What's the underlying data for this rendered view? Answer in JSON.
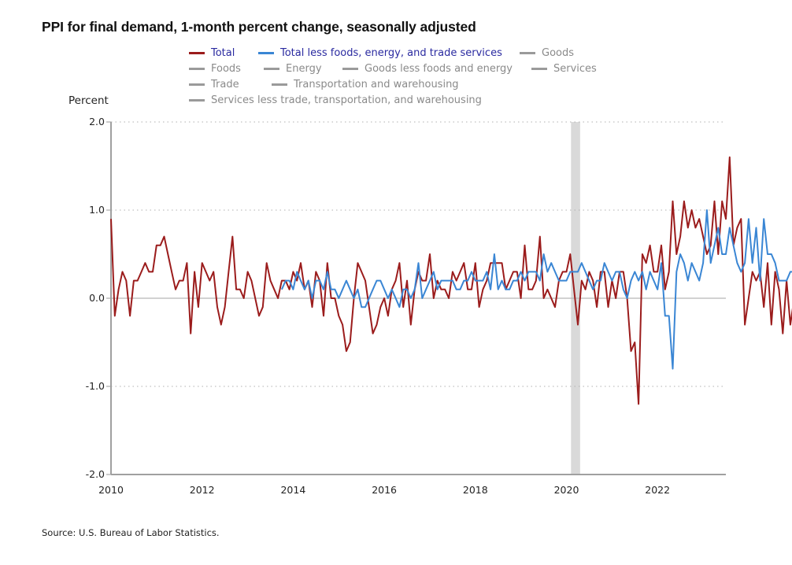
{
  "chart_data": {
    "type": "line",
    "title": "PPI for final demand, 1-month percent change, seasonally adjusted",
    "ylabel": "Percent",
    "xlabel": "",
    "source": "Source: U.S. Bureau of Labor Statistics.",
    "ylim": [
      -2.0,
      2.0
    ],
    "yticks": [
      "2.0",
      "1.0",
      "0.0",
      "-1.0",
      "-2.0"
    ],
    "ytick_values": [
      2.0,
      1.0,
      0.0,
      -1.0,
      -2.0
    ],
    "xticks": [
      "2010",
      "2012",
      "2014",
      "2016",
      "2018",
      "2020",
      "2022"
    ],
    "xtick_values": [
      2010,
      2012,
      2014,
      2016,
      2018,
      2020,
      2022
    ],
    "xlim": [
      2010,
      2023.5
    ],
    "grid": "horizontal dotted",
    "recession_shading": {
      "start": 2020.1,
      "end": 2020.3
    },
    "legend_position": "top",
    "legend": [
      {
        "label": "Total",
        "color": "#9b1c1c",
        "active": true
      },
      {
        "label": "Total less foods, energy, and trade services",
        "color": "#3a86d4",
        "active": true
      },
      {
        "label": "Goods",
        "color": "#9a9a9a",
        "active": false
      },
      {
        "label": "Foods",
        "color": "#9a9a9a",
        "active": false
      },
      {
        "label": "Energy",
        "color": "#9a9a9a",
        "active": false
      },
      {
        "label": "Goods less foods and energy",
        "color": "#9a9a9a",
        "active": false
      },
      {
        "label": "Services",
        "color": "#9a9a9a",
        "active": false
      },
      {
        "label": "Trade",
        "color": "#9a9a9a",
        "active": false
      },
      {
        "label": "Transportation and warehousing",
        "color": "#9a9a9a",
        "active": false
      },
      {
        "label": "Services less trade, transportation, and warehousing",
        "color": "#9a9a9a",
        "active": false
      }
    ],
    "series": [
      {
        "name": "Total",
        "color": "#9b1c1c",
        "start": 2010.0,
        "step_months": 1,
        "values": [
          0.9,
          -0.2,
          0.1,
          0.3,
          0.2,
          -0.2,
          0.2,
          0.2,
          0.3,
          0.4,
          0.3,
          0.3,
          0.6,
          0.6,
          0.7,
          0.5,
          0.3,
          0.1,
          0.2,
          0.2,
          0.4,
          -0.4,
          0.3,
          -0.1,
          0.4,
          0.3,
          0.2,
          0.3,
          -0.1,
          -0.3,
          -0.1,
          0.3,
          0.7,
          0.1,
          0.1,
          0.0,
          0.3,
          0.2,
          0.0,
          -0.2,
          -0.1,
          0.4,
          0.2,
          0.1,
          0.0,
          0.2,
          0.2,
          0.1,
          0.3,
          0.2,
          0.4,
          0.1,
          0.2,
          -0.1,
          0.3,
          0.2,
          -0.2,
          0.4,
          0.0,
          0.0,
          -0.2,
          -0.3,
          -0.6,
          -0.5,
          0.0,
          0.4,
          0.3,
          0.2,
          -0.1,
          -0.4,
          -0.3,
          -0.1,
          0.0,
          -0.2,
          0.1,
          0.2,
          0.4,
          -0.1,
          0.2,
          -0.3,
          0.1,
          0.3,
          0.2,
          0.2,
          0.5,
          0.0,
          0.2,
          0.1,
          0.1,
          0.0,
          0.3,
          0.2,
          0.3,
          0.4,
          0.1,
          0.1,
          0.4,
          -0.1,
          0.1,
          0.2,
          0.4,
          0.4,
          0.4,
          0.4,
          0.1,
          0.2,
          0.3,
          0.3,
          0.0,
          0.6,
          0.1,
          0.1,
          0.2,
          0.7,
          0.0,
          0.1,
          0.0,
          -0.1,
          0.2,
          0.3,
          0.3,
          0.5,
          0.1,
          -0.3,
          0.2,
          0.1,
          0.3,
          0.2,
          -0.1,
          0.3,
          0.3,
          -0.1,
          0.2,
          0.0,
          0.3,
          0.3,
          0.0,
          -0.6,
          -0.5,
          -1.2,
          0.5,
          0.4,
          0.6,
          0.3,
          0.3,
          0.6,
          0.1,
          0.3,
          1.1,
          0.5,
          0.7,
          1.1,
          0.8,
          1.0,
          0.8,
          0.9,
          0.7,
          0.5,
          0.6,
          1.1,
          0.5,
          1.1,
          0.9,
          1.6,
          0.6,
          0.8,
          0.9,
          -0.3,
          0.0,
          0.3,
          0.2,
          0.3,
          -0.1,
          0.4,
          -0.3,
          0.3,
          0.1,
          -0.4,
          0.2,
          -0.3,
          0.0,
          0.3
        ]
      },
      {
        "name": "Total less foods, energy, and trade services",
        "color": "#3a86d4",
        "start": 2013.75,
        "step_months": 1,
        "values": [
          0.1,
          0.2,
          0.2,
          0.1,
          0.3,
          0.2,
          0.1,
          0.2,
          0.0,
          0.2,
          0.2,
          0.1,
          0.3,
          0.1,
          0.1,
          0.0,
          0.1,
          0.2,
          0.1,
          0.0,
          0.1,
          -0.1,
          -0.1,
          0.0,
          0.1,
          0.2,
          0.2,
          0.1,
          0.0,
          0.1,
          0.0,
          -0.1,
          0.1,
          0.1,
          0.0,
          0.1,
          0.4,
          0.0,
          0.1,
          0.2,
          0.3,
          0.1,
          0.2,
          0.2,
          0.2,
          0.2,
          0.1,
          0.1,
          0.2,
          0.2,
          0.3,
          0.2,
          0.2,
          0.2,
          0.3,
          0.1,
          0.5,
          0.1,
          0.2,
          0.1,
          0.1,
          0.2,
          0.2,
          0.3,
          0.2,
          0.3,
          0.3,
          0.3,
          0.2,
          0.5,
          0.3,
          0.4,
          0.3,
          0.2,
          0.2,
          0.2,
          0.3,
          0.3,
          0.3,
          0.4,
          0.3,
          0.2,
          0.1,
          0.2,
          0.2,
          0.4,
          0.3,
          0.2,
          0.3,
          0.3,
          0.1,
          0.0,
          0.2,
          0.3,
          0.2,
          0.3,
          0.1,
          0.3,
          0.2,
          0.1,
          0.4,
          -0.2,
          -0.2,
          -0.8,
          0.3,
          0.5,
          0.4,
          0.2,
          0.4,
          0.3,
          0.2,
          0.4,
          1.0,
          0.4,
          0.6,
          0.8,
          0.5,
          0.5,
          0.8,
          0.6,
          0.4,
          0.3,
          0.4,
          0.9,
          0.4,
          0.8,
          0.2,
          0.9,
          0.5,
          0.5,
          0.4,
          0.2,
          0.2,
          0.2,
          0.3,
          0.3,
          0.2,
          0.4,
          0.2,
          0.5,
          0.3,
          0.1,
          0.1,
          0.0,
          0.1,
          0.2
        ]
      }
    ]
  }
}
